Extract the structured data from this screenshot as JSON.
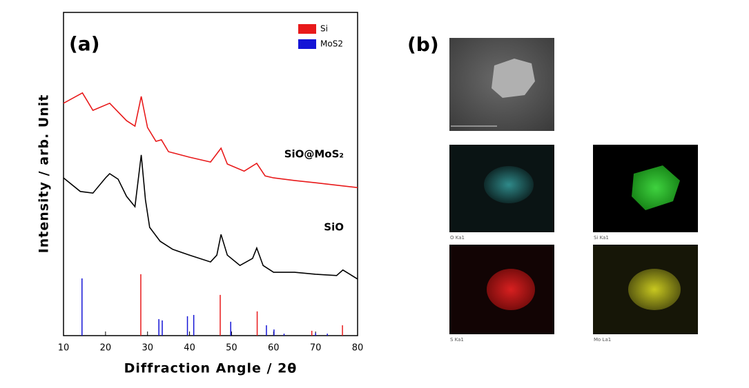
{
  "chart_data": {
    "type": "line",
    "panel_label": "(a)",
    "x_label": "Diffraction Angle / 2θ",
    "y_label": "Intensity / arb. Unit",
    "xlim": [
      10,
      80
    ],
    "xticks": [
      10,
      20,
      30,
      40,
      50,
      60,
      70,
      80
    ],
    "ylim": [
      0,
      100
    ],
    "legend": "upper right",
    "series": [
      {
        "name": "SiO@MoS₂",
        "color": "#e8191a",
        "x": [
          10,
          14.5,
          17,
          21,
          25,
          27,
          28.5,
          30,
          32,
          33.3,
          35,
          40,
          45,
          47.5,
          49,
          53,
          56,
          58,
          60,
          65,
          70,
          80
        ],
        "values": [
          71.9,
          75.1,
          69.7,
          71.9,
          66.5,
          64.8,
          74.0,
          64.4,
          60.1,
          60.6,
          56.9,
          55.2,
          53.7,
          58.0,
          53.1,
          50.9,
          53.3,
          49.4,
          48.8,
          48.0,
          47.3,
          45.8
        ]
      },
      {
        "name": "SiO",
        "color": "#000000",
        "x": [
          10,
          14,
          17,
          20,
          21,
          23,
          25,
          27,
          28.5,
          29.5,
          30.5,
          33,
          36,
          40,
          45,
          46.5,
          47.5,
          49,
          52,
          55,
          56,
          57.5,
          60,
          65,
          70,
          75,
          76.5,
          80
        ],
        "values": [
          48.8,
          44.6,
          44.1,
          48.8,
          50.1,
          48.4,
          43.1,
          39.9,
          55.9,
          42.0,
          33.5,
          29.2,
          26.7,
          24.9,
          22.8,
          24.9,
          31.3,
          24.9,
          21.7,
          23.9,
          27.1,
          21.7,
          19.6,
          19.6,
          19.0,
          18.6,
          20.3,
          17.5
        ]
      }
    ],
    "reference_series": [
      {
        "name": "Si",
        "color": "#e8191a",
        "x": [
          28.4,
          47.3,
          56.1,
          69.1,
          76.4
        ],
        "values": [
          19.0,
          12.6,
          7.5,
          1.5,
          3.2
        ]
      },
      {
        "name": "MoS2",
        "color": "#1414d6",
        "x": [
          14.4,
          32.7,
          33.5,
          39.5,
          41.0,
          49.8,
          58.3,
          60.1,
          62.5,
          70.0,
          72.8
        ],
        "values": [
          17.7,
          5.1,
          4.7,
          6.0,
          6.4,
          4.3,
          3.2,
          1.9,
          0.6,
          0.8,
          0.6
        ]
      }
    ]
  },
  "panel_b": {
    "label": "(b)",
    "maps": [
      "O Ka1",
      "Si Ka1",
      "S Ka1",
      "Mo La1"
    ]
  }
}
